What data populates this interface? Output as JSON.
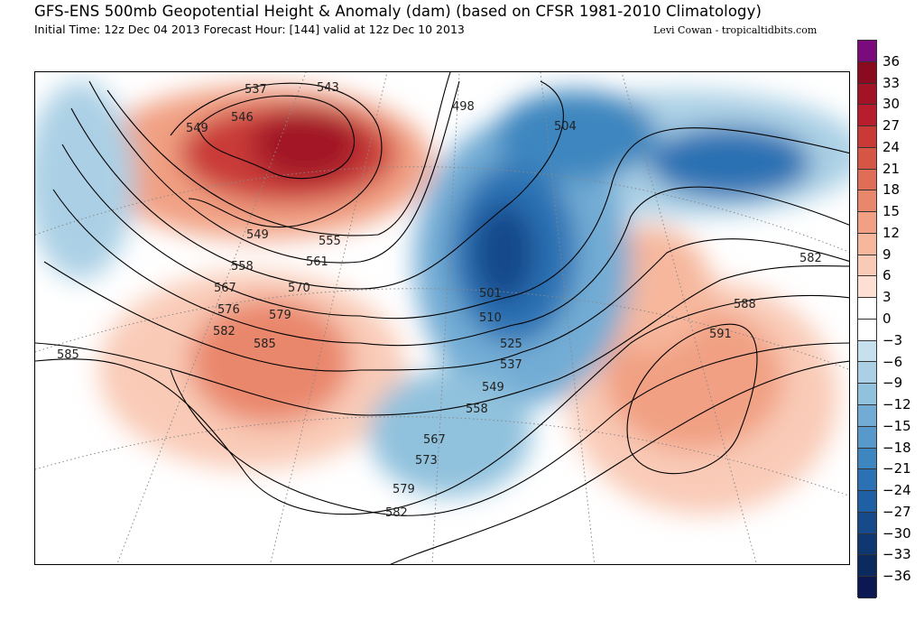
{
  "header": {
    "title": "GFS-ENS 500mb Geopotential Height & Anomaly (dam) (based on CFSR 1981-2010 Climatology)",
    "subtitle": "Initial Time: 12z Dec 04 2013 Forecast Hour: [144] valid at 12z Dec 10 2013",
    "credit": "Levi Cowan - tropicaltidbits.com"
  },
  "colorbar": {
    "labels": [
      "36",
      "33",
      "30",
      "27",
      "24",
      "21",
      "18",
      "15",
      "12",
      "9",
      "6",
      "3",
      "0",
      "−3",
      "−6",
      "−9",
      "−12",
      "−15",
      "−18",
      "−21",
      "−24",
      "−27",
      "−30",
      "−33",
      "−36"
    ],
    "colors": [
      "#7b0a7d",
      "#8a0b1f",
      "#a21326",
      "#b81d2d",
      "#c93a37",
      "#d55644",
      "#e06d56",
      "#e9876c",
      "#f1a083",
      "#f6b79d",
      "#f9cbb7",
      "#fde0d3",
      "#ffffff",
      "#ffffff",
      "#c7e0ed",
      "#abd0e5",
      "#90c1dd",
      "#72acd4",
      "#5699ca",
      "#3e86bf",
      "#2c71b3",
      "#1f5fa4",
      "#174a8b",
      "#0f3772",
      "#0b2a5e",
      "#0c1852"
    ]
  },
  "map": {
    "contour_labels": [
      "537",
      "543",
      "546",
      "549",
      "549",
      "555",
      "558",
      "561",
      "567",
      "570",
      "576",
      "579",
      "582",
      "585",
      "585",
      "498",
      "504",
      "501",
      "510",
      "525",
      "537",
      "549",
      "558",
      "567",
      "573",
      "579",
      "582",
      "582",
      "588",
      "591"
    ]
  }
}
